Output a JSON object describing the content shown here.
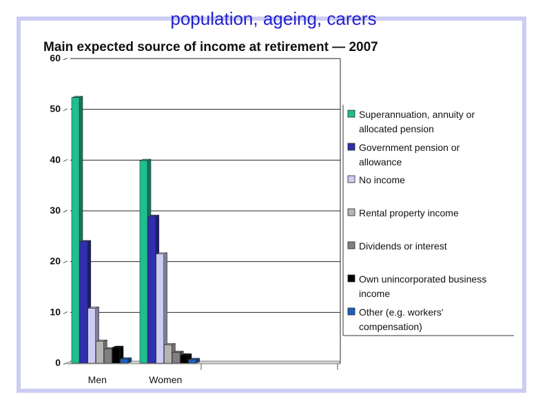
{
  "slide": {
    "title": "population, ageing, carers",
    "frame_color": "#ccccf4",
    "title_color": "#2222cc"
  },
  "chart_data": {
    "type": "bar",
    "title": "Main expected source of income at retirement — 2007",
    "xlabel": "",
    "ylabel": "",
    "ylim": [
      0,
      60
    ],
    "yticks": [
      0,
      10,
      20,
      30,
      40,
      50,
      60
    ],
    "grid": true,
    "legend_position": "right",
    "categories": [
      "Men",
      "Women"
    ],
    "series": [
      {
        "name": "Superannuation, annuity or allocated pension",
        "color": "#1fbf8f",
        "values": [
          52.3,
          39.9
        ]
      },
      {
        "name": "Government pension or allowance",
        "color": "#2f2fb0",
        "values": [
          23.9,
          28.9
        ]
      },
      {
        "name": "No income",
        "color": "#ccccf4",
        "values": [
          10.8,
          21.5
        ]
      },
      {
        "name": "Rental property income",
        "color": "#b4b4b4",
        "values": [
          4.3,
          3.6
        ]
      },
      {
        "name": "Dividends or interest",
        "color": "#808080",
        "values": [
          2.8,
          2.1
        ]
      },
      {
        "name": "Own unincorporated business income",
        "color": "#000000",
        "values": [
          3.1,
          1.6
        ]
      },
      {
        "name": "Other (e.g. workers' compensation)",
        "color": "#1e60c0",
        "values": [
          0.8,
          0.7
        ]
      }
    ]
  }
}
